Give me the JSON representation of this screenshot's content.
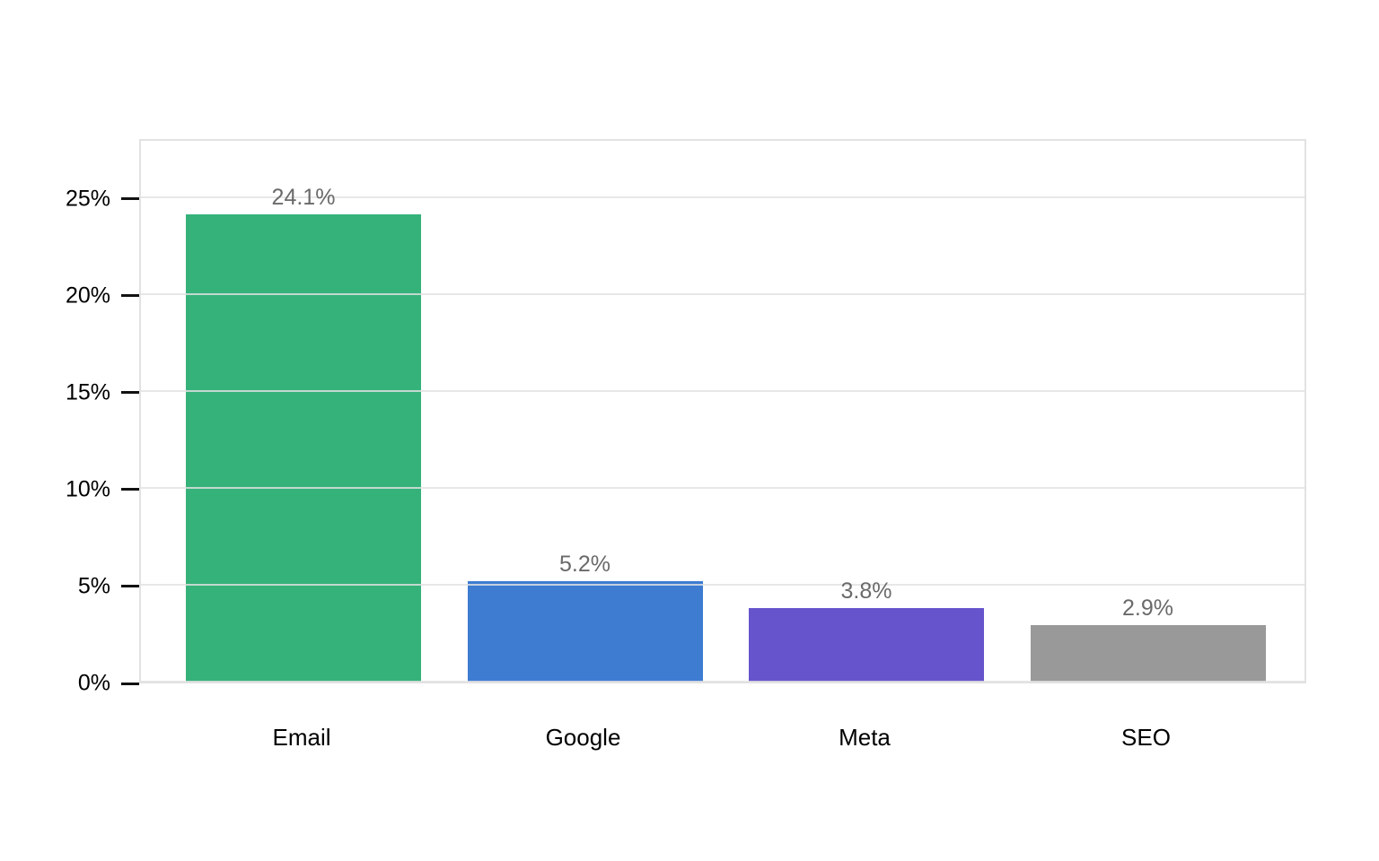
{
  "chart_data": {
    "type": "bar",
    "title": "",
    "categories": [
      "Email",
      "Google",
      "Meta",
      "SEO"
    ],
    "values": [
      24.1,
      5.2,
      3.8,
      2.9
    ],
    "value_labels": [
      "24.1%",
      "5.2%",
      "3.8%",
      "2.9%"
    ],
    "bar_colors": [
      "#35b27a",
      "#3d7cd1",
      "#6654cc",
      "#999999"
    ],
    "y_ticks": [
      {
        "value": 0,
        "label": "0%"
      },
      {
        "value": 5,
        "label": "5%"
      },
      {
        "value": 10,
        "label": "10%"
      },
      {
        "value": 15,
        "label": "15%"
      },
      {
        "value": 20,
        "label": "20%"
      },
      {
        "value": 25,
        "label": "25%"
      }
    ],
    "xlabel": "",
    "ylabel": "",
    "ylim": [
      0,
      28.1
    ],
    "grid": true,
    "gridlines_above_bars": true,
    "legend": "none",
    "value_label_color": "#6a6a6a",
    "axis_text_color": "#000000",
    "grid_color": "#e2e2e2"
  }
}
